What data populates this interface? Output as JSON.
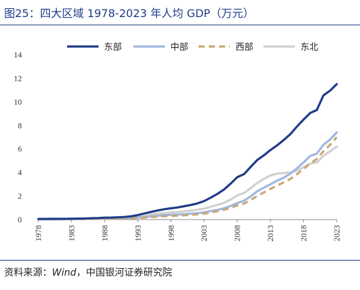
{
  "figure": {
    "title": "图25：四大区域 1978-2023 年人均 GDP（万元）",
    "source_prefix": "资料来源：",
    "source_italic": "Wind",
    "source_rest": "，中国银河证券研究院"
  },
  "chart_data": {
    "type": "line",
    "title": "图25：四大区域 1978-2023 年人均 GDP（万元）",
    "xlabel": "",
    "ylabel": "",
    "ylim": [
      0,
      14
    ],
    "yticks": [
      0,
      2,
      4,
      6,
      8,
      10,
      12,
      14
    ],
    "xticks": [
      "1978",
      "1983",
      "1988",
      "1993",
      "1998",
      "2003",
      "2008",
      "2013",
      "2018",
      "2023"
    ],
    "grid": false,
    "legend_position": "top",
    "x": [
      1978,
      1979,
      1980,
      1981,
      1982,
      1983,
      1984,
      1985,
      1986,
      1987,
      1988,
      1989,
      1990,
      1991,
      1992,
      1993,
      1994,
      1995,
      1996,
      1997,
      1998,
      1999,
      2000,
      2001,
      2002,
      2003,
      2004,
      2005,
      2006,
      2007,
      2008,
      2009,
      2010,
      2011,
      2012,
      2013,
      2014,
      2015,
      2016,
      2017,
      2018,
      2019,
      2020,
      2021,
      2022,
      2023
    ],
    "series": [
      {
        "name": "东部",
        "color": "#1f3c88",
        "dash": "solid",
        "values": [
          0.05,
          0.05,
          0.06,
          0.06,
          0.06,
          0.07,
          0.08,
          0.09,
          0.11,
          0.13,
          0.16,
          0.17,
          0.19,
          0.22,
          0.28,
          0.38,
          0.52,
          0.65,
          0.77,
          0.88,
          0.96,
          1.03,
          1.13,
          1.24,
          1.37,
          1.57,
          1.86,
          2.18,
          2.55,
          3.05,
          3.6,
          3.85,
          4.45,
          5.05,
          5.45,
          5.9,
          6.3,
          6.75,
          7.25,
          7.9,
          8.5,
          9.05,
          9.3,
          10.55,
          10.95,
          11.5
        ]
      },
      {
        "name": "中部",
        "color": "#9fb7e0",
        "dash": "solid",
        "values": [
          0.03,
          0.03,
          0.03,
          0.03,
          0.04,
          0.04,
          0.05,
          0.06,
          0.07,
          0.08,
          0.09,
          0.1,
          0.11,
          0.12,
          0.14,
          0.17,
          0.21,
          0.27,
          0.32,
          0.37,
          0.4,
          0.42,
          0.46,
          0.5,
          0.54,
          0.61,
          0.72,
          0.82,
          0.95,
          1.15,
          1.4,
          1.6,
          1.95,
          2.4,
          2.7,
          3.0,
          3.3,
          3.55,
          3.9,
          4.35,
          4.85,
          5.4,
          5.6,
          6.35,
          6.8,
          7.4
        ]
      },
      {
        "name": "西部",
        "color": "#c8a878",
        "dash": "dashed",
        "values": [
          0.03,
          0.03,
          0.03,
          0.03,
          0.03,
          0.04,
          0.04,
          0.05,
          0.06,
          0.06,
          0.07,
          0.08,
          0.09,
          0.1,
          0.12,
          0.14,
          0.17,
          0.21,
          0.25,
          0.28,
          0.31,
          0.33,
          0.36,
          0.4,
          0.44,
          0.5,
          0.6,
          0.7,
          0.83,
          1.0,
          1.2,
          1.35,
          1.65,
          2.0,
          2.3,
          2.6,
          2.9,
          3.15,
          3.45,
          3.85,
          4.3,
          4.75,
          5.15,
          5.8,
          6.35,
          7.0
        ]
      },
      {
        "name": "东北",
        "color": "#d0d0d0",
        "dash": "solid",
        "values": [
          0.06,
          0.06,
          0.07,
          0.07,
          0.07,
          0.08,
          0.09,
          0.1,
          0.12,
          0.13,
          0.15,
          0.17,
          0.19,
          0.21,
          0.24,
          0.29,
          0.36,
          0.44,
          0.5,
          0.55,
          0.6,
          0.63,
          0.7,
          0.76,
          0.83,
          0.93,
          1.08,
          1.25,
          1.42,
          1.7,
          2.05,
          2.25,
          2.65,
          3.1,
          3.45,
          3.75,
          3.9,
          3.95,
          4.0,
          4.15,
          4.45,
          4.75,
          4.85,
          5.4,
          5.8,
          6.2
        ]
      }
    ]
  }
}
